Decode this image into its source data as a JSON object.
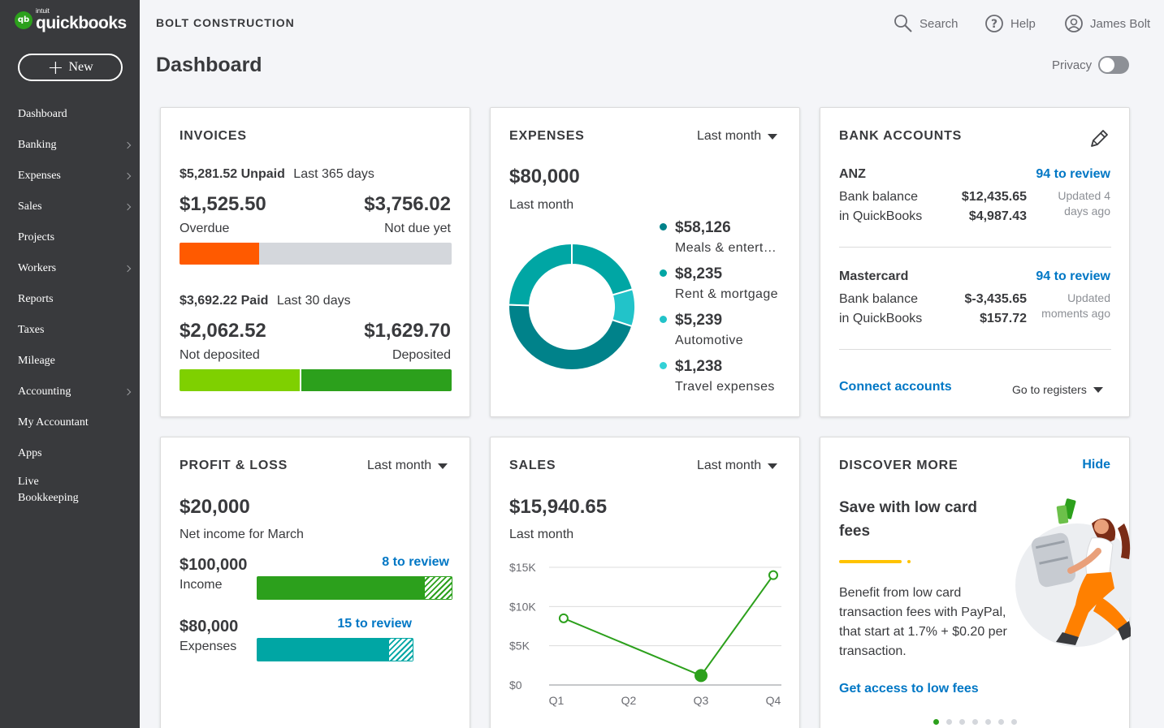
{
  "brand": {
    "logo_mark": "qb",
    "intuit": "intuit",
    "name": "quickbooks"
  },
  "sidebar": {
    "new_label": "New",
    "items": [
      {
        "label": "Dashboard",
        "chevron": false
      },
      {
        "label": "Banking",
        "chevron": true
      },
      {
        "label": "Expenses",
        "chevron": true
      },
      {
        "label": "Sales",
        "chevron": true
      },
      {
        "label": "Projects",
        "chevron": false
      },
      {
        "label": "Workers",
        "chevron": true
      },
      {
        "label": "Reports",
        "chevron": false
      },
      {
        "label": "Taxes",
        "chevron": false
      },
      {
        "label": "Mileage",
        "chevron": false
      },
      {
        "label": "Accounting",
        "chevron": true
      },
      {
        "label": "My Accountant",
        "chevron": false
      },
      {
        "label": "Apps",
        "chevron": false
      },
      {
        "label": "Live\nBookkeeping",
        "chevron": false
      }
    ]
  },
  "header": {
    "company": "BOLT CONSTRUCTION",
    "search": "Search",
    "help": "Help",
    "user": "James Bolt",
    "page_title": "Dashboard",
    "privacy": "Privacy"
  },
  "colors": {
    "brand_green": "#2ca01c",
    "link_blue": "#0077c5",
    "overdue_orange": "#ff5a00",
    "not_deposited_green": "#7fd000",
    "deposited_green": "#2ca01c",
    "teal_dark": "#00828a",
    "teal_mid": "#00a6a4",
    "teal_light": "#22c3c9",
    "sidebar_bg": "#393a3d"
  },
  "invoices": {
    "title": "INVOICES",
    "unpaid_amount": "$5,281.52 Unpaid",
    "unpaid_period": "Last 365 days",
    "overdue_value": "$1,525.50",
    "overdue_label": "Overdue",
    "notdue_value": "$3,756.02",
    "notdue_label": "Not due yet",
    "paid_amount": "$3,692.22 Paid",
    "paid_period": "Last 30 days",
    "notdeposited_value": "$2,062.52",
    "notdeposited_label": "Not deposited",
    "deposited_value": "$1,629.70",
    "deposited_label": "Deposited"
  },
  "expenses": {
    "title": "EXPENSES",
    "period": "Last month",
    "total": "$80,000",
    "total_label": "Last month",
    "categories": [
      {
        "amount": "$58,126",
        "label": "Meals & entert…",
        "value": 58126,
        "color": "#00828a"
      },
      {
        "amount": "$8,235",
        "label": "Rent & mortgage",
        "value": 8235,
        "color": "#00a6a4"
      },
      {
        "amount": "$5,239",
        "label": "Automotive",
        "value": 5239,
        "color": "#22c3c9"
      },
      {
        "amount": "$1,238",
        "label": "Travel expenses",
        "value": 1238,
        "color": "#33d1d6"
      }
    ]
  },
  "bank": {
    "title": "BANK ACCOUNTS",
    "edit_icon": "pencil-icon",
    "accounts": [
      {
        "name": "ANZ",
        "review": "94 to review",
        "label1": "Bank balance",
        "label2": "in QuickBooks",
        "bank_balance": "$12,435.65",
        "qb_balance": "$4,987.43",
        "updated": "Updated 4\ndays ago"
      },
      {
        "name": "Mastercard",
        "review": "94 to review",
        "label1": "Bank balance",
        "label2": "in QuickBooks",
        "bank_balance": "$-3,435.65",
        "qb_balance": "$157.72",
        "updated": "Updated\nmoments ago"
      }
    ],
    "connect": "Connect accounts",
    "registers": "Go to registers"
  },
  "profit_loss": {
    "title": "PROFIT & LOSS",
    "period": "Last month",
    "net": "$20,000",
    "net_label": "Net income for March",
    "income_value": "$100,000",
    "income_label": "Income",
    "income_review": "8 to review",
    "expenses_value": "$80,000",
    "expenses_label": "Expenses",
    "expenses_review": "15 to review"
  },
  "sales": {
    "title": "SALES",
    "period": "Last month",
    "total": "$15,940.65",
    "total_label": "Last month"
  },
  "chart_data": {
    "type": "line",
    "categories": [
      "Q1",
      "Q2",
      "Q3",
      "Q4"
    ],
    "x": [
      "Q1",
      "Q3",
      "Q4"
    ],
    "series": [
      {
        "values": [
          8500,
          1200,
          14000
        ],
        "x": [
          0.1,
          2,
          3
        ]
      }
    ],
    "ytick_labels": [
      "$15K",
      "$10K",
      "$5K",
      "$0"
    ],
    "yticks": [
      15000,
      10000,
      5000,
      0
    ],
    "ylim": [
      0,
      15000
    ],
    "grid": true,
    "title": "",
    "xlabel": "",
    "ylabel": ""
  },
  "discover": {
    "title": "DISCOVER MORE",
    "hide": "Hide",
    "headline": "Save with low card fees",
    "body": "Benefit from low card transaction fees with PayPal, that start at 1.7% + $0.20 per transaction.",
    "cta": "Get access to low fees",
    "pages": 7,
    "current_page": 1
  }
}
